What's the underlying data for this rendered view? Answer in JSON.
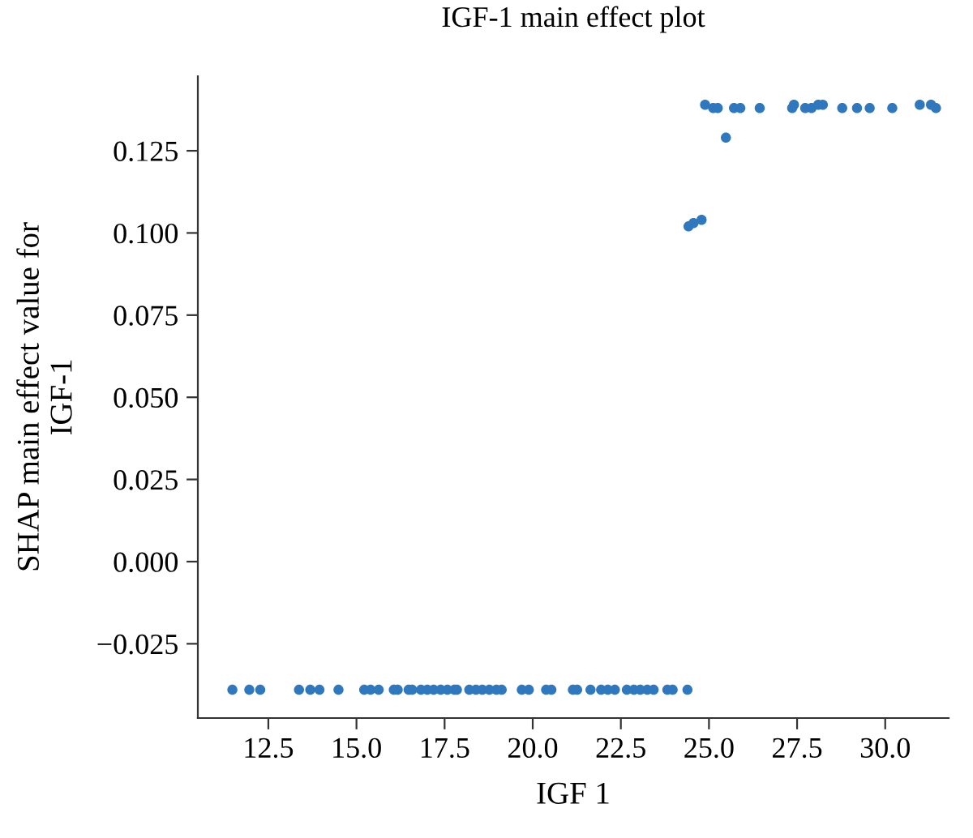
{
  "chart_data": {
    "type": "scatter",
    "title": "IGF-1 main effect plot",
    "xlabel": "IGF 1",
    "ylabel": "SHAP main effect value for\nIGF-1",
    "series": [
      {
        "color": "#2f78bd",
        "x": [
          11.48,
          11.96,
          12.27,
          13.37,
          13.69,
          13.95,
          14.49,
          15.22,
          15.4,
          15.63,
          16.06,
          16.17,
          16.48,
          16.58,
          16.83,
          17.01,
          17.19,
          17.39,
          17.58,
          17.78,
          17.85,
          18.2,
          18.39,
          18.57,
          18.77,
          18.97,
          19.12,
          19.69,
          19.89,
          20.38,
          20.53,
          21.14,
          21.26,
          21.64,
          21.94,
          22.13,
          22.33,
          22.67,
          22.87,
          23.05,
          23.25,
          23.43,
          23.82,
          23.97,
          24.39,
          24.42,
          24.56,
          24.79,
          24.89,
          25.12,
          25.25,
          25.48,
          25.71,
          25.89,
          26.44,
          27.36,
          27.41,
          27.73,
          27.91,
          28.1,
          28.23,
          28.78,
          29.2,
          29.56,
          30.2,
          30.98,
          31.3,
          31.44
        ],
        "values": [
          -0.039,
          -0.039,
          -0.039,
          -0.039,
          -0.039,
          -0.039,
          -0.039,
          -0.039,
          -0.039,
          -0.039,
          -0.039,
          -0.039,
          -0.039,
          -0.039,
          -0.039,
          -0.039,
          -0.039,
          -0.039,
          -0.039,
          -0.039,
          -0.039,
          -0.039,
          -0.039,
          -0.039,
          -0.039,
          -0.039,
          -0.039,
          -0.039,
          -0.039,
          -0.039,
          -0.039,
          -0.039,
          -0.039,
          -0.039,
          -0.039,
          -0.039,
          -0.039,
          -0.039,
          -0.039,
          -0.039,
          -0.039,
          -0.039,
          -0.039,
          -0.039,
          -0.039,
          0.102,
          0.103,
          0.104,
          0.139,
          0.138,
          0.138,
          0.129,
          0.138,
          0.138,
          0.138,
          0.138,
          0.139,
          0.138,
          0.138,
          0.139,
          0.139,
          0.138,
          0.138,
          0.138,
          0.138,
          0.139,
          0.139,
          0.138
        ]
      }
    ],
    "xlim": [
      10.5,
      31.8
    ],
    "ylim": [
      -0.0476,
      0.1477
    ],
    "xticks": [
      {
        "value": 12.5,
        "label": "12.5"
      },
      {
        "value": 15,
        "label": "15.0"
      },
      {
        "value": 17.5,
        "label": "17.5"
      },
      {
        "value": 20,
        "label": "20.0"
      },
      {
        "value": 22.5,
        "label": "22.5"
      },
      {
        "value": 25,
        "label": "25.0"
      },
      {
        "value": 27.5,
        "label": "27.5"
      },
      {
        "value": 30,
        "label": "30.0"
      }
    ],
    "yticks": [
      {
        "value": -0.025,
        "label": "−0.025"
      },
      {
        "value": 0,
        "label": "0.000"
      },
      {
        "value": 0.025,
        "label": "0.025"
      },
      {
        "value": 0.05,
        "label": "0.050"
      },
      {
        "value": 0.075,
        "label": "0.075"
      },
      {
        "value": 0.1,
        "label": "0.100"
      },
      {
        "value": 0.125,
        "label": "0.125"
      }
    ],
    "grid": false,
    "legend": false,
    "marker": "circle"
  }
}
